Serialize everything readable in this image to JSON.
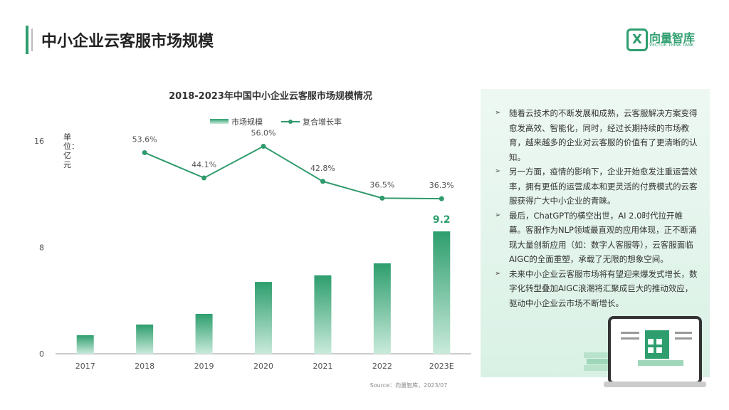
{
  "header": {
    "title": "中小企业云客服市场规模",
    "logo_name": "向量智库",
    "logo_sub": "VECTOR THINK TANK"
  },
  "chart_data": {
    "type": "bar",
    "title": "2018-2023年中国中小企业云客服市场规模情况",
    "y_label": "单位：亿元",
    "categories": [
      "2017",
      "2018",
      "2019",
      "2020",
      "2021",
      "2022",
      "2023E"
    ],
    "series": [
      {
        "name": "市场规模",
        "type": "bar",
        "color": "#2e9e6e",
        "values": [
          1.4,
          2.2,
          3.0,
          5.4,
          5.9,
          6.8,
          9.2
        ],
        "value_labels": [
          null,
          null,
          null,
          null,
          null,
          null,
          "9.2"
        ]
      },
      {
        "name": "复合增长率",
        "type": "line",
        "axis": "y2",
        "color": "#2f9a6b",
        "values": [
          null,
          53.6,
          44.1,
          56.0,
          42.8,
          36.5,
          36.3
        ],
        "value_labels": [
          null,
          "53.6%",
          "44.1%",
          "56.0%",
          "42.8%",
          "36.5%",
          "36.3%"
        ]
      }
    ],
    "ylim": [
      0,
      16
    ],
    "yticks": [
      0,
      8,
      16
    ],
    "y2lim": [
      -22,
      58
    ],
    "legend": "top",
    "grid": false,
    "source": "Source：向量智库，2023/07"
  },
  "panel": {
    "bullets": [
      "随着云技术的不断发展和成熟，云客服解决方案变得愈发高效、智能化，同时，经过长期持续的市场教育，越来越多的企业对云客服的价值有了更清晰的认知。",
      "另一方面，疫情的影响下，企业开始愈发注重运营效率，拥有更低的运营成本和更灵活的付费模式的云客服获得广大中小企业的青睐。",
      "最后，ChatGPT的横空出世，AI 2.0时代拉开帷幕。客服作为NLP领域最直观的应用体现，正不断涌现大量创新应用（如：数字人客服等），云客服面临AIGC的全面重塑，承载了无限的想象空间。",
      "未来中小企业云客服市场将有望迎来爆发式增长，数字化转型叠加AIGC浪潮将汇聚成巨大的推动效应，驱动中小企业云市场不断增长。"
    ]
  }
}
